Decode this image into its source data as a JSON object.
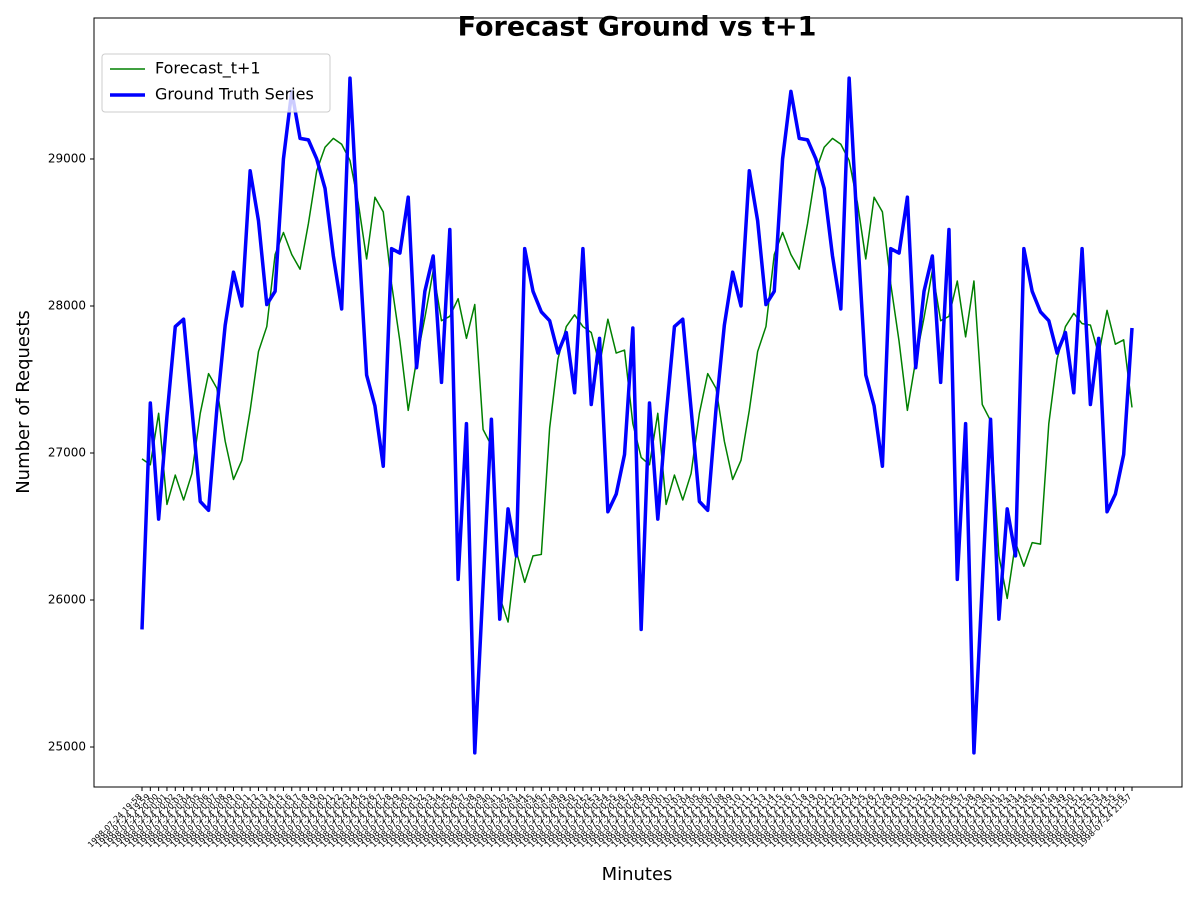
{
  "chart_data": {
    "type": "line",
    "title": "Forecast Ground vs t+1",
    "xlabel": "Minutes",
    "ylabel": "Number of Requests",
    "categories": [
      "1998-07-24 19:58",
      "1998-07-24 19:59",
      "1998-07-24 20:00",
      "1998-07-24 20:01",
      "1998-07-24 20:02",
      "1998-07-24 20:03",
      "1998-07-24 20:04",
      "1998-07-24 20:05",
      "1998-07-24 20:06",
      "1998-07-24 20:07",
      "1998-07-24 20:08",
      "1998-07-24 20:09",
      "1998-07-24 20:10",
      "1998-07-24 20:11",
      "1998-07-24 20:12",
      "1998-07-24 20:13",
      "1998-07-24 20:14",
      "1998-07-24 20:15",
      "1998-07-24 20:16",
      "1998-07-24 20:17",
      "1998-07-24 20:18",
      "1998-07-24 20:19",
      "1998-07-24 20:20",
      "1998-07-24 20:21",
      "1998-07-24 20:22",
      "1998-07-24 20:23",
      "1998-07-24 20:24",
      "1998-07-24 20:25",
      "1998-07-24 20:26",
      "1998-07-24 20:27",
      "1998-07-24 20:28",
      "1998-07-24 20:29",
      "1998-07-24 20:30",
      "1998-07-24 20:31",
      "1998-07-24 20:32",
      "1998-07-24 20:33",
      "1998-07-24 20:34",
      "1998-07-24 20:35",
      "1998-07-24 20:36",
      "1998-07-24 20:37",
      "1998-07-24 20:38",
      "1998-07-24 20:39",
      "1998-07-24 20:40",
      "1998-07-24 20:41",
      "1998-07-24 20:42",
      "1998-07-24 20:43",
      "1998-07-24 20:44",
      "1998-07-24 20:45",
      "1998-07-24 20:46",
      "1998-07-24 20:47",
      "1998-07-24 20:48",
      "1998-07-24 20:49",
      "1998-07-24 20:50",
      "1998-07-24 20:51",
      "1998-07-24 20:52",
      "1998-07-24 20:53",
      "1998-07-24 20:54",
      "1998-07-24 20:55",
      "1998-07-24 20:56",
      "1998-07-24 20:57",
      "1998-07-24 20:58",
      "1998-07-24 20:59",
      "1998-07-24 21:00",
      "1998-07-24 21:01",
      "1998-07-24 21:02",
      "1998-07-24 21:03",
      "1998-07-24 21:04",
      "1998-07-24 21:05",
      "1998-07-24 21:06",
      "1998-07-24 21:07",
      "1998-07-24 21:08",
      "1998-07-24 21:09",
      "1998-07-24 21:10",
      "1998-07-24 21:11",
      "1998-07-24 21:12",
      "1998-07-24 21:13",
      "1998-07-24 21:14",
      "1998-07-24 21:15",
      "1998-07-24 21:16",
      "1998-07-24 21:17",
      "1998-07-24 21:18",
      "1998-07-24 21:19",
      "1998-07-24 21:20",
      "1998-07-24 21:21",
      "1998-07-24 21:22",
      "1998-07-24 21:23",
      "1998-07-24 21:24",
      "1998-07-24 21:25",
      "1998-07-24 21:26",
      "1998-07-24 21:27",
      "1998-07-24 21:28",
      "1998-07-24 21:29",
      "1998-07-24 21:30",
      "1998-07-24 21:31",
      "1998-07-24 21:32",
      "1998-07-24 21:33",
      "1998-07-24 21:34",
      "1998-07-24 21:35",
      "1998-07-24 21:36",
      "1998-07-24 21:37",
      "1998-07-24 21:38",
      "1998-07-24 21:39",
      "1998-07-24 21:40",
      "1998-07-24 21:41",
      "1998-07-24 21:42",
      "1998-07-24 21:43",
      "1998-07-24 21:44",
      "1998-07-24 21:45",
      "1998-07-24 21:46",
      "1998-07-24 21:47",
      "1998-07-24 21:48",
      "1998-07-24 21:49",
      "1998-07-24 21:50",
      "1998-07-24 21:51",
      "1998-07-24 21:52",
      "1998-07-24 21:53",
      "1998-07-24 21:54",
      "1998-07-24 21:55",
      "1998-07-24 21:56",
      "1998-07-24 21:57"
    ],
    "series": [
      {
        "name": "Forecast_t+1",
        "color": "#008000",
        "width": 1.5,
        "values": [
          26960,
          26920,
          27270,
          26650,
          26850,
          26680,
          26860,
          27270,
          27540,
          27440,
          27080,
          26820,
          26950,
          27290,
          27690,
          27860,
          28350,
          28500,
          28350,
          28250,
          28560,
          28920,
          29080,
          29140,
          29100,
          28990,
          28700,
          28320,
          28740,
          28640,
          28150,
          27760,
          27290,
          27630,
          27920,
          28240,
          27900,
          27930,
          28050,
          27780,
          28010,
          27160,
          27050,
          26020,
          25850,
          26330,
          26120,
          26300,
          26310,
          27170,
          27640,
          27860,
          27940,
          27860,
          27820,
          27600,
          27910,
          27680,
          27700,
          27200,
          26970,
          26920,
          27270,
          26650,
          26850,
          26680,
          26860,
          27270,
          27540,
          27440,
          27080,
          26820,
          26950,
          27290,
          27690,
          27860,
          28350,
          28500,
          28350,
          28250,
          28560,
          28920,
          29080,
          29140,
          29100,
          28990,
          28700,
          28320,
          28740,
          28640,
          28150,
          27760,
          27290,
          27630,
          27920,
          28240,
          27900,
          27930,
          28170,
          27790,
          28170,
          27330,
          27220,
          26300,
          26010,
          26390,
          26230,
          26390,
          26380,
          27200,
          27640,
          27860,
          27950,
          27880,
          27870,
          27670,
          27970,
          27740,
          27770,
          27310
        ]
      },
      {
        "name": "Ground Truth Series",
        "color": "#0000ff",
        "width": 3.5,
        "values": [
          25800,
          27340,
          26550,
          27250,
          27860,
          27910,
          27300,
          26670,
          26610,
          27300,
          27870,
          28230,
          28000,
          28920,
          28580,
          28010,
          28100,
          29000,
          29460,
          29140,
          29130,
          29000,
          28800,
          28340,
          27980,
          29550,
          28500,
          27530,
          27320,
          26910,
          28390,
          28360,
          28740,
          27580,
          28100,
          28340,
          27480,
          28520,
          26140,
          27200,
          24960,
          26100,
          27230,
          25870,
          26620,
          26300,
          28390,
          28100,
          27960,
          27900,
          27680,
          27820,
          27410,
          28390,
          27330,
          27780,
          26600,
          26720,
          26990,
          27850,
          25800,
          27340,
          26550,
          27250,
          27860,
          27910,
          27300,
          26670,
          26610,
          27300,
          27870,
          28230,
          28000,
          28920,
          28580,
          28010,
          28100,
          29000,
          29460,
          29140,
          29130,
          29000,
          28800,
          28340,
          27980,
          29550,
          28500,
          27530,
          27320,
          26910,
          28390,
          28360,
          28740,
          27580,
          28100,
          28340,
          27480,
          28520,
          26140,
          27200,
          24960,
          26100,
          27230,
          25870,
          26620,
          26300,
          28390,
          28100,
          27960,
          27900,
          27680,
          27820,
          27410,
          28390,
          27330,
          27780,
          26600,
          26720,
          26990,
          27850
        ]
      }
    ],
    "ylim": [
      24728,
      29959
    ],
    "yticks": [
      25000,
      26000,
      27000,
      28000,
      29000
    ],
    "grid": false,
    "legend": "upper left"
  }
}
